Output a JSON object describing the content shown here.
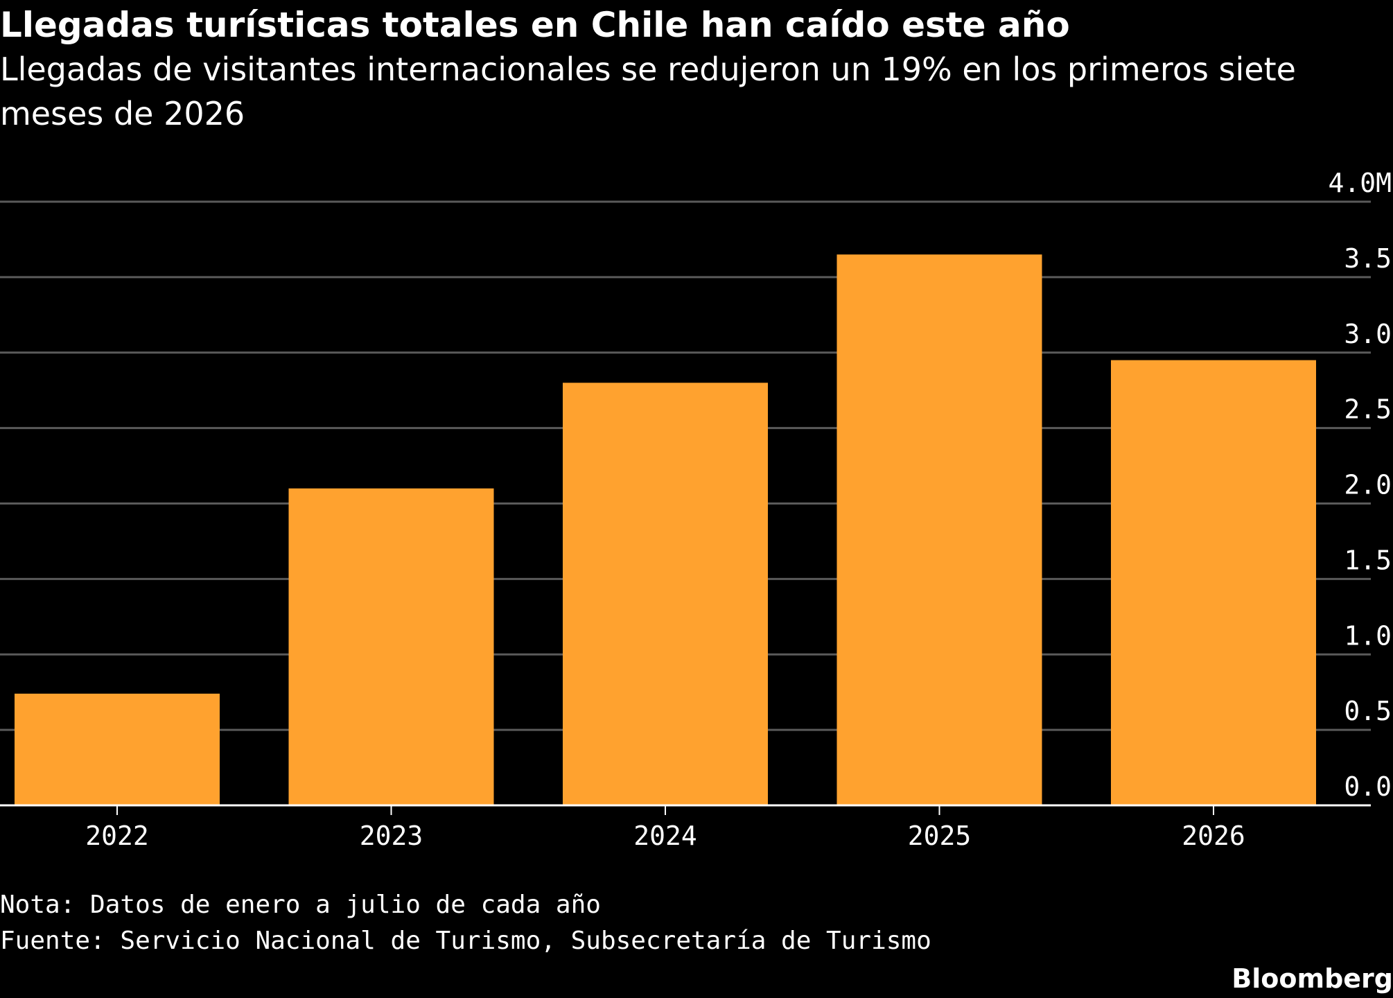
{
  "header": {
    "title": "Llegadas turísticas totales en Chile han caído este año",
    "subtitle": "Llegadas de visitantes internacionales se redujeron un 19% en los primeros siete meses de 2026"
  },
  "footer": {
    "note": "Nota: Datos de enero a julio de cada año",
    "source": "Fuente: Servicio Nacional de Turismo, Subsecretaría de Turismo",
    "brand": "Bloomberg"
  },
  "colors": {
    "background": "#000000",
    "bar": "#FFA22F",
    "grid": "#5a5a5a",
    "axis": "#ffffff",
    "text": "#ffffff"
  },
  "chart_data": {
    "type": "bar",
    "categories": [
      "2022",
      "2023",
      "2024",
      "2025",
      "2026"
    ],
    "values": [
      0.74,
      2.1,
      2.8,
      3.65,
      2.95
    ],
    "ylim": [
      0,
      4.0
    ],
    "yticks": [
      0,
      0.5,
      1.0,
      1.5,
      2.0,
      2.5,
      3.0,
      3.5,
      4.0
    ],
    "ytick_labels": [
      "0.0",
      "0.5",
      "1.0",
      "1.5",
      "2.0",
      "2.5",
      "3.0",
      "3.5",
      "4.0M"
    ],
    "y_axis_position": "right",
    "grid": true,
    "xlabel": "",
    "ylabel": ""
  }
}
